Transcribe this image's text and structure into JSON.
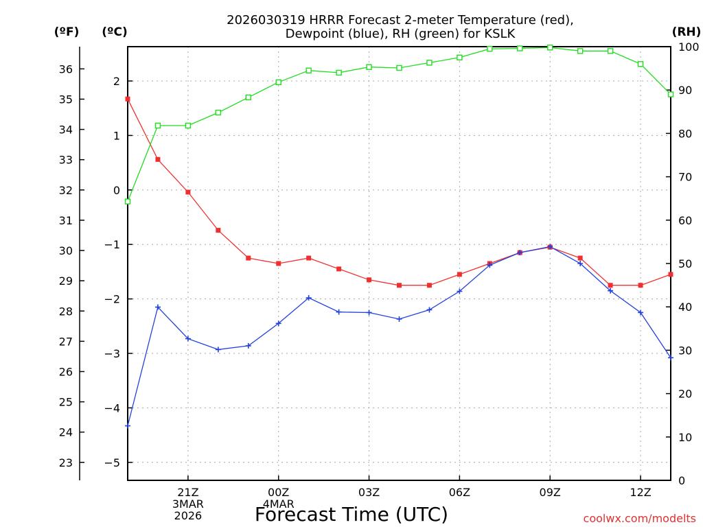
{
  "chart_data": {
    "type": "line",
    "title_line1": "2026030319 HRRR Forecast 2-meter Temperature (red),",
    "title_line2": "Dewpoint (blue), RH (green) for KSLK",
    "xlabel": "Forecast Time (UTC)",
    "watermark": "coolwx.com/modelts",
    "axis_labels": {
      "fahrenheit": "(ºF)",
      "celsius": "(ºC)",
      "rh": "(RH)"
    },
    "x_range_hours": [
      0,
      18
    ],
    "x_ticks": [
      {
        "hour": 2,
        "lines": [
          "21Z",
          "3MAR",
          "2026"
        ]
      },
      {
        "hour": 5,
        "lines": [
          "00Z",
          "4MAR"
        ]
      },
      {
        "hour": 8,
        "lines": [
          "03Z"
        ]
      },
      {
        "hour": 11,
        "lines": [
          "06Z"
        ]
      },
      {
        "hour": 14,
        "lines": [
          "09Z"
        ]
      },
      {
        "hour": 17,
        "lines": [
          "12Z"
        ]
      }
    ],
    "celsius_range": [
      -5.33,
      2.63
    ],
    "celsius_ticks": [
      2,
      1,
      0,
      -1,
      -2,
      -3,
      -4,
      -5
    ],
    "fahrenheit_ticks": [
      36,
      35,
      34,
      33,
      32,
      31,
      30,
      29,
      28,
      27,
      26,
      25,
      24,
      23
    ],
    "rh_range": [
      0,
      100
    ],
    "rh_ticks": [
      100,
      90,
      80,
      70,
      60,
      50,
      40,
      30,
      20,
      10,
      0
    ],
    "grid": true,
    "series": [
      {
        "name": "Temperature",
        "unit": "C",
        "axis": "celsius",
        "color": "#f03030",
        "marker": "filled-square",
        "hours": [
          0,
          1,
          2,
          3,
          4,
          5,
          6,
          7,
          8,
          9,
          10,
          11,
          12,
          13,
          14,
          15,
          16,
          17,
          18
        ],
        "values": [
          1.67,
          0.56,
          -0.04,
          -0.74,
          -1.25,
          -1.35,
          -1.25,
          -1.45,
          -1.65,
          -1.75,
          -1.75,
          -1.55,
          -1.35,
          -1.15,
          -1.05,
          -1.25,
          -1.75,
          -1.75,
          -1.55
        ]
      },
      {
        "name": "Dewpoint",
        "unit": "C",
        "axis": "celsius",
        "color": "#2040e0",
        "marker": "plus",
        "hours": [
          0,
          1,
          2,
          3,
          4,
          5,
          6,
          7,
          8,
          9,
          10,
          11,
          12,
          13,
          14,
          15,
          16,
          17,
          18
        ],
        "values": [
          -4.33,
          -2.15,
          -2.73,
          -2.93,
          -2.86,
          -2.45,
          -1.98,
          -2.24,
          -2.25,
          -2.37,
          -2.2,
          -1.86,
          -1.38,
          -1.15,
          -1.04,
          -1.35,
          -1.85,
          -2.25,
          -3.08
        ]
      },
      {
        "name": "RH",
        "unit": "%",
        "axis": "rh",
        "color": "#20dd20",
        "marker": "open-square",
        "hours": [
          0,
          1,
          2,
          3,
          4,
          5,
          6,
          7,
          8,
          9,
          10,
          11,
          12,
          13,
          14,
          15,
          16,
          17,
          18
        ],
        "values": [
          64.3,
          81.8,
          81.8,
          84.8,
          88.3,
          91.8,
          94.5,
          94.0,
          95.3,
          95.1,
          96.3,
          97.5,
          99.5,
          99.6,
          99.8,
          99.0,
          99.0,
          96.0,
          89.0
        ]
      }
    ]
  }
}
